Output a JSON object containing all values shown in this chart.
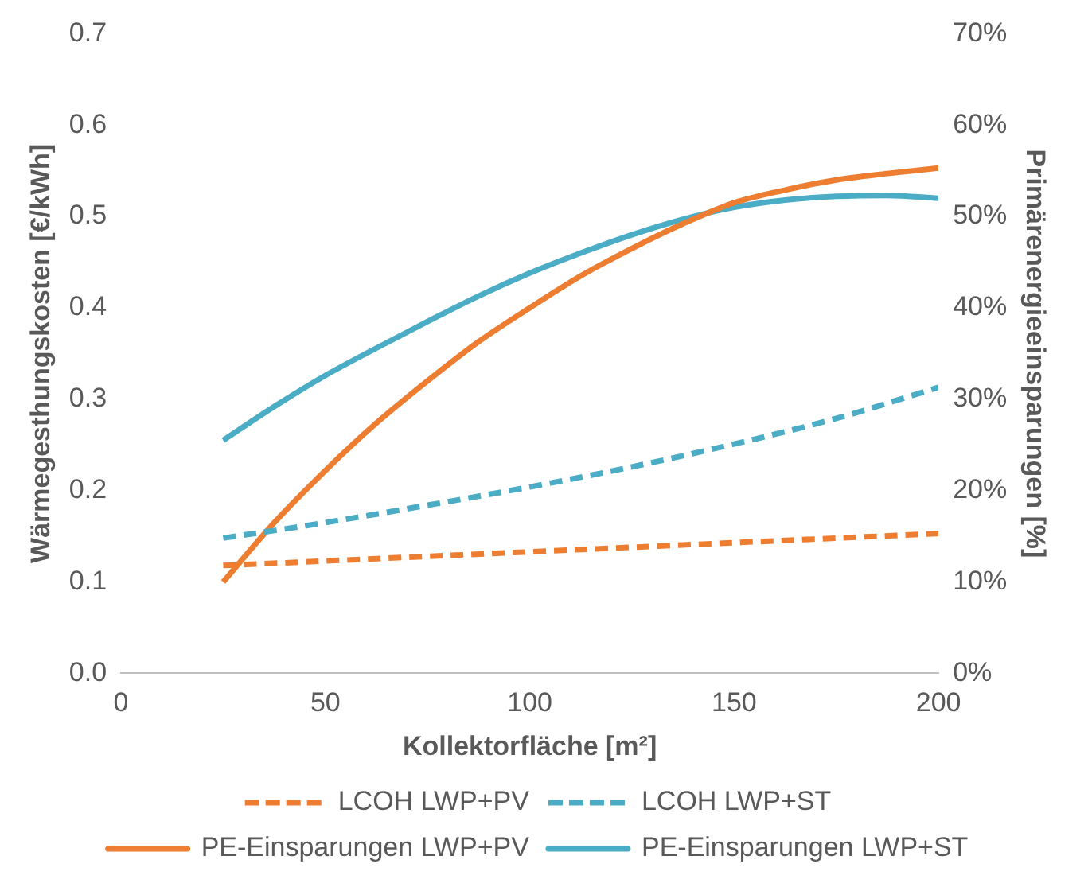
{
  "chart_data": {
    "type": "line",
    "xlabel": "Kollektorfläche [m²]",
    "ylabel": "Wärmegesthungskosten [€/kWh]",
    "y2label": "Primärenergieeinsparungen [%]",
    "xlim": [
      0,
      200
    ],
    "xticks": [
      0,
      50,
      100,
      150,
      200
    ],
    "ylim": [
      0,
      0.7
    ],
    "yticks": [
      {
        "value": 0,
        "label": "0.0"
      },
      0.1,
      0.2,
      0.3,
      0.4,
      0.5,
      0.6,
      0.7
    ],
    "y2lim": [
      0,
      70
    ],
    "y2ticks": [
      {
        "value": 0,
        "label": "0%"
      },
      {
        "value": 10,
        "label": "10%"
      },
      {
        "value": 20,
        "label": "20%"
      },
      {
        "value": 30,
        "label": "30%"
      },
      {
        "value": 40,
        "label": "40%"
      },
      {
        "value": 50,
        "label": "50%"
      },
      {
        "value": 60,
        "label": "60%"
      },
      {
        "value": 70,
        "label": "70%"
      }
    ],
    "grid": false,
    "legend": "bottom",
    "marker": "none",
    "series": [
      {
        "name": "LCOH LWP+PV",
        "color": "#ed7d31",
        "line_style": "dashed",
        "x": [
          25,
          100,
          200
        ],
        "values": [
          0.118,
          0.133,
          0.153
        ]
      },
      {
        "name": "LCOH LWP+ST",
        "color": "#4bacc6",
        "line_style": "dashed",
        "x": [
          25,
          50,
          75,
          100,
          125,
          150,
          175,
          200
        ],
        "values": [
          0.148,
          0.165,
          0.184,
          0.204,
          0.226,
          0.251,
          0.279,
          0.313
        ]
      },
      {
        "name": "PE-Einsparungen LWP+PV",
        "color": "#ed7d31",
        "line_style": "solid",
        "axis": "y2",
        "x": [
          25,
          37.5,
          50,
          62.5,
          75,
          87.5,
          100,
          112.5,
          125,
          137.5,
          150,
          162.5,
          175,
          187.5,
          200
        ],
        "values": [
          10,
          16.5,
          22.2,
          27.4,
          32,
          36.3,
          40,
          43.5,
          46.5,
          49.2,
          51.5,
          52.9,
          54,
          54.7,
          55.3
        ]
      },
      {
        "name": "PE-Einsparungen LWP+ST",
        "color": "#4bacc6",
        "line_style": "solid",
        "axis": "y2",
        "x": [
          25,
          37.5,
          50,
          62.5,
          75,
          87.5,
          100,
          112.5,
          125,
          137.5,
          150,
          162.5,
          175,
          187.5,
          200
        ],
        "values": [
          25.5,
          29.2,
          32.6,
          35.6,
          38.5,
          41.3,
          43.8,
          46,
          48,
          49.7,
          51,
          51.8,
          52.2,
          52.3,
          52
        ]
      }
    ]
  }
}
